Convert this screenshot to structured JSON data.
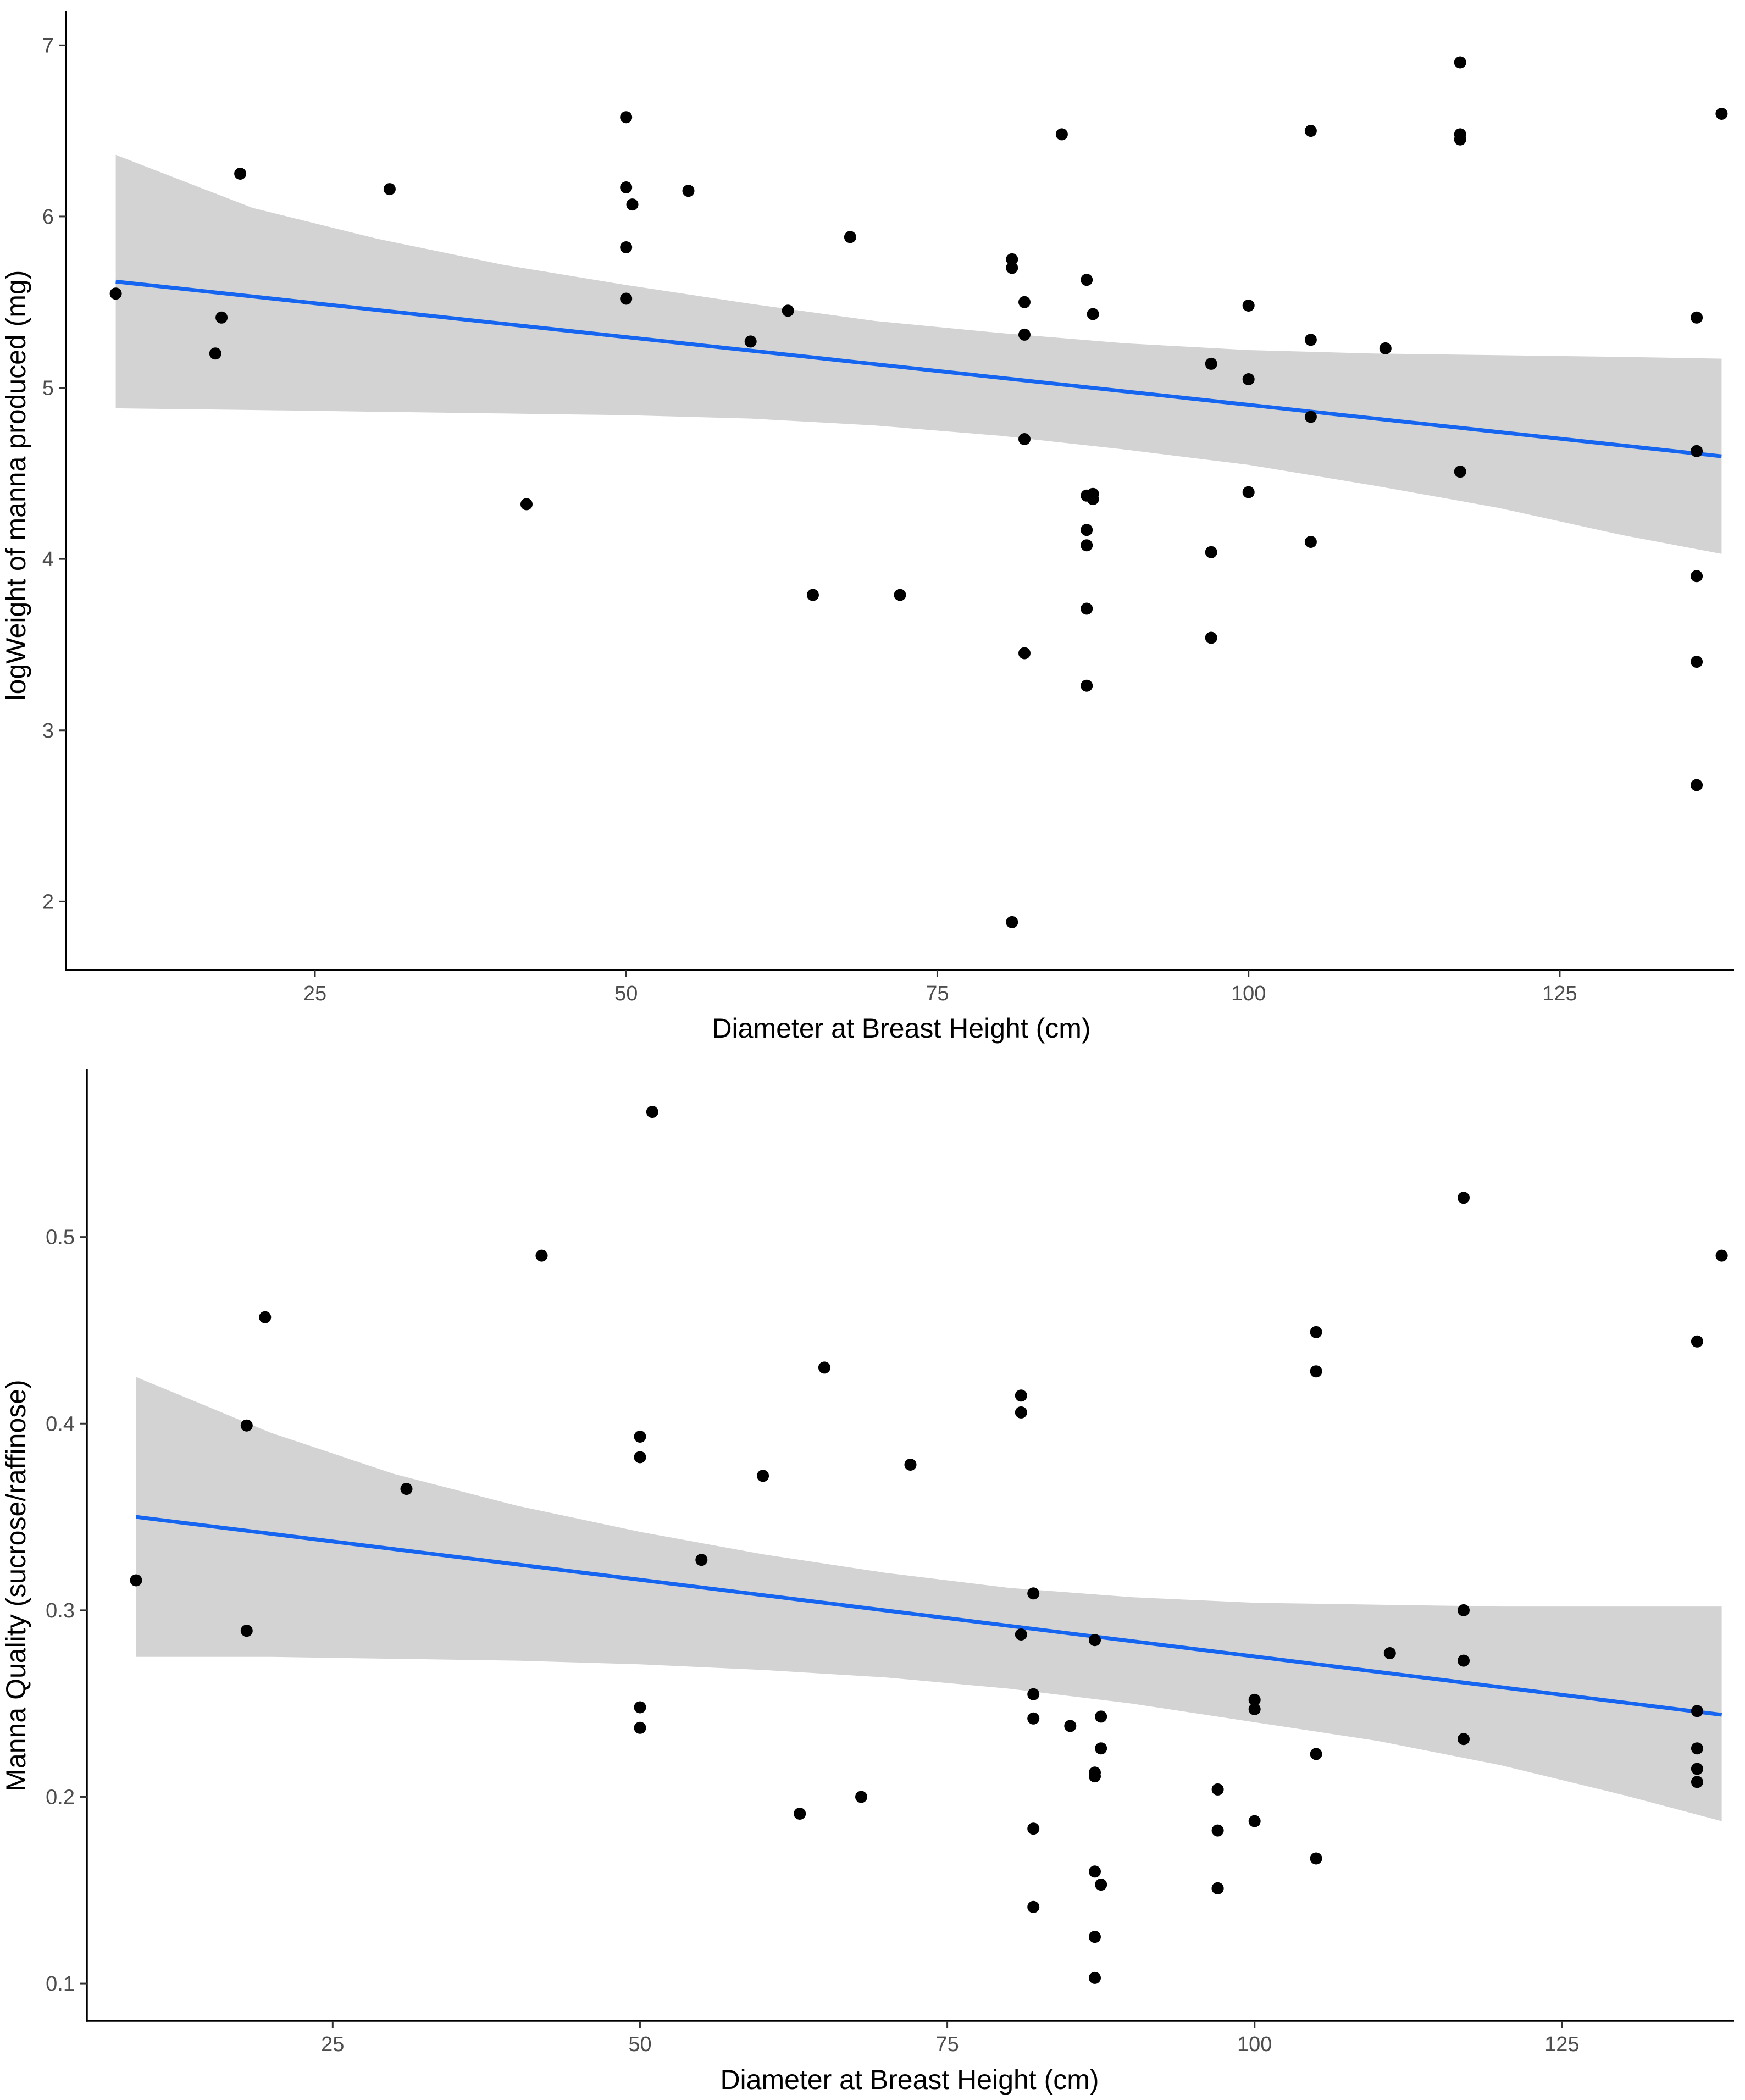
{
  "chart_data": [
    {
      "type": "scatter",
      "xlabel": "Diameter at Breast Height (cm)",
      "ylabel": "logWeight of manna produced (mg)",
      "xlim": [
        5,
        139
      ],
      "ylim": [
        1.6,
        7.2
      ],
      "xticks": [
        25,
        50,
        75,
        100,
        125
      ],
      "yticks": [
        2,
        3,
        4,
        5,
        6,
        7
      ],
      "grid": false,
      "point_color": "#000000",
      "line_color": "#1565f0",
      "band_color": "#d3d3d3",
      "trend": {
        "x": [
          9,
          138
        ],
        "y": [
          5.62,
          4.6
        ]
      },
      "band": {
        "x": [
          9,
          20,
          30,
          40,
          50,
          60,
          70,
          80,
          90,
          100,
          110,
          120,
          130,
          138
        ],
        "upper": [
          6.36,
          6.05,
          5.87,
          5.72,
          5.6,
          5.49,
          5.39,
          5.32,
          5.26,
          5.22,
          5.2,
          5.19,
          5.18,
          5.17
        ],
        "lower": [
          4.88,
          4.87,
          4.86,
          4.85,
          4.84,
          4.82,
          4.78,
          4.72,
          4.64,
          4.55,
          4.43,
          4.3,
          4.14,
          4.03
        ]
      },
      "series": [
        {
          "name": "points",
          "x": [
            9,
            17,
            17.5,
            19,
            31,
            42,
            50,
            50,
            50,
            50,
            50.5,
            55,
            60,
            63,
            65,
            68,
            72,
            81,
            81,
            81,
            82,
            82,
            82,
            82,
            85,
            87,
            87,
            87,
            87,
            87,
            87,
            87.5,
            87.5,
            87.5,
            97,
            97,
            97,
            100,
            100,
            100,
            105,
            105,
            105,
            105,
            111,
            117,
            117,
            117,
            117,
            136,
            136,
            136,
            136,
            136,
            138
          ],
          "y": [
            5.55,
            5.2,
            5.41,
            6.25,
            6.16,
            4.32,
            6.58,
            6.17,
            5.82,
            5.52,
            6.07,
            6.15,
            5.27,
            5.45,
            3.79,
            5.88,
            3.79,
            5.75,
            5.7,
            1.88,
            5.5,
            5.31,
            4.7,
            3.45,
            6.48,
            5.63,
            4.37,
            4.17,
            4.08,
            3.71,
            3.26,
            5.43,
            4.38,
            4.35,
            5.14,
            4.04,
            3.54,
            5.48,
            5.05,
            4.39,
            6.5,
            5.28,
            4.83,
            4.1,
            5.23,
            6.9,
            6.48,
            6.45,
            4.51,
            5.41,
            4.63,
            3.9,
            3.4,
            2.68,
            6.6
          ]
        }
      ]
    },
    {
      "type": "scatter",
      "xlabel": "Diameter at Breast Height (cm)",
      "ylabel": "Manna Quality (sucrose/raffinose)",
      "xlim": [
        5,
        139
      ],
      "ylim": [
        0.08,
        0.59
      ],
      "xticks": [
        25,
        50,
        75,
        100,
        125
      ],
      "yticks": [
        0.1,
        0.2,
        0.3,
        0.4,
        0.5
      ],
      "grid": false,
      "point_color": "#000000",
      "line_color": "#1565f0",
      "band_color": "#d3d3d3",
      "trend": {
        "x": [
          9,
          138
        ],
        "y": [
          0.35,
          0.244
        ]
      },
      "band": {
        "x": [
          9,
          20,
          30,
          40,
          50,
          60,
          70,
          80,
          90,
          100,
          110,
          120,
          130,
          138
        ],
        "upper": [
          0.425,
          0.395,
          0.373,
          0.356,
          0.342,
          0.33,
          0.32,
          0.312,
          0.307,
          0.304,
          0.303,
          0.302,
          0.302,
          0.302
        ],
        "lower": [
          0.275,
          0.275,
          0.274,
          0.273,
          0.271,
          0.268,
          0.264,
          0.258,
          0.25,
          0.24,
          0.23,
          0.217,
          0.201,
          0.187
        ]
      },
      "series": [
        {
          "name": "points",
          "x": [
            9,
            18,
            18,
            19.5,
            31,
            42,
            50,
            50,
            50,
            50,
            51,
            55,
            60,
            63,
            65,
            68,
            72,
            81,
            81,
            81,
            82,
            82,
            82,
            82,
            82,
            85,
            87,
            87,
            87,
            87,
            87,
            87,
            87.5,
            87.5,
            87.5,
            97,
            97,
            97,
            97,
            100,
            100,
            100,
            105,
            105,
            105,
            105,
            111,
            117,
            117,
            117,
            117,
            136,
            136,
            136,
            136,
            136,
            138
          ],
          "y": [
            0.316,
            0.399,
            0.289,
            0.457,
            0.365,
            0.49,
            0.393,
            0.382,
            0.248,
            0.237,
            0.567,
            0.327,
            0.372,
            0.191,
            0.43,
            0.2,
            0.378,
            0.415,
            0.406,
            0.287,
            0.309,
            0.255,
            0.242,
            0.183,
            0.141,
            0.238,
            0.284,
            0.213,
            0.211,
            0.16,
            0.125,
            0.103,
            0.243,
            0.226,
            0.153,
            0.204,
            0.182,
            0.151,
            0.151,
            0.252,
            0.247,
            0.187,
            0.449,
            0.428,
            0.223,
            0.167,
            0.277,
            0.521,
            0.3,
            0.273,
            0.231,
            0.444,
            0.246,
            0.226,
            0.215,
            0.208,
            0.49
          ]
        }
      ]
    }
  ]
}
